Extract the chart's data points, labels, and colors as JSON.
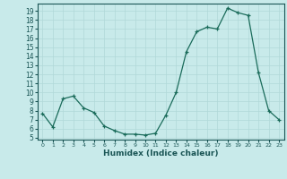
{
  "hours": [
    0,
    1,
    2,
    3,
    4,
    5,
    6,
    7,
    8,
    9,
    10,
    11,
    12,
    13,
    14,
    15,
    16,
    17,
    18,
    19,
    20,
    21,
    22,
    23
  ],
  "humidex": [
    7.7,
    6.2,
    9.3,
    9.6,
    8.3,
    7.8,
    6.3,
    5.8,
    5.4,
    5.4,
    5.3,
    5.5,
    7.5,
    10.0,
    14.5,
    16.7,
    17.2,
    17.0,
    19.3,
    18.8,
    18.5,
    12.2,
    8.0,
    7.0
  ],
  "line_color": "#1a6b5a",
  "bg_color": "#c8eaea",
  "grid_color": "#b0d8d8",
  "text_color": "#1a5555",
  "xlabel": "Humidex (Indice chaleur)",
  "ylim": [
    4.8,
    19.8
  ],
  "xlim": [
    -0.5,
    23.5
  ],
  "yticks": [
    5,
    6,
    7,
    8,
    9,
    10,
    11,
    12,
    13,
    14,
    15,
    16,
    17,
    18,
    19
  ],
  "xticks": [
    0,
    1,
    2,
    3,
    4,
    5,
    6,
    7,
    8,
    9,
    10,
    11,
    12,
    13,
    14,
    15,
    16,
    17,
    18,
    19,
    20,
    21,
    22,
    23
  ],
  "tick_fontsize": 5.5,
  "xtick_fontsize": 4.5,
  "xlabel_fontsize": 6.5,
  "linewidth": 0.9,
  "markersize": 3.0
}
